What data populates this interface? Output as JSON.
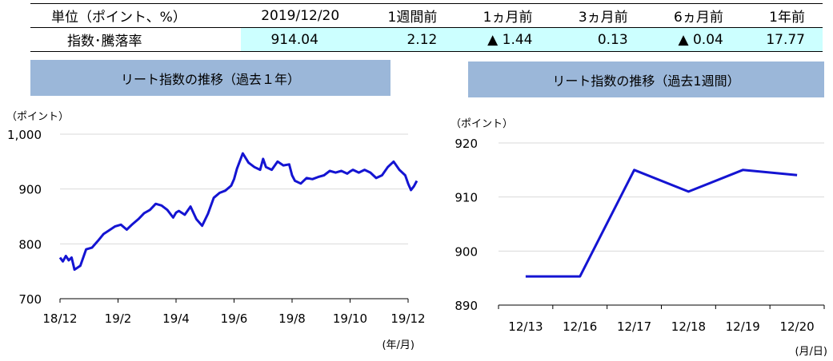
{
  "summary": {
    "headers": [
      "単位（ポイント、%）",
      "2019/12/20",
      "1週間前",
      "1ヵ月前",
      "3ヵ月前",
      "6ヵ月前",
      "1年前"
    ],
    "row_label": "指数･騰落率",
    "values": [
      "914.04",
      "2.12",
      "▲ 1.44",
      "0.13",
      "▲ 0.04",
      "17.77"
    ]
  },
  "colors": {
    "line": "#1414d2",
    "banner": "#9bb7d9",
    "highlight": "#ccffff",
    "grid": "#d9d9d9"
  },
  "chart_data": [
    {
      "type": "line",
      "title": "リート指数の推移（過去１年）",
      "y_unit": "（ポイント）",
      "x_unit": "(年/月)",
      "ylim": [
        700,
        1000
      ],
      "yticks": [
        "700",
        "800",
        "900",
        "1,000"
      ],
      "xticks": [
        "18/12",
        "19/2",
        "19/4",
        "19/6",
        "19/8",
        "19/10",
        "19/12"
      ],
      "grid": true,
      "x": [
        0,
        0.05,
        0.1,
        0.15,
        0.2,
        0.25,
        0.35,
        0.45,
        0.55,
        0.65,
        0.75,
        0.85,
        0.95,
        1.05,
        1.15,
        1.25,
        1.35,
        1.45,
        1.55,
        1.65,
        1.75,
        1.85,
        1.95,
        2.0,
        2.05,
        2.15,
        2.25,
        2.35,
        2.45,
        2.55,
        2.65,
        2.75,
        2.85,
        2.95,
        3.0,
        3.05,
        3.15,
        3.25,
        3.35,
        3.45,
        3.5,
        3.55,
        3.65,
        3.75,
        3.85,
        3.95,
        4.0,
        4.05,
        4.15,
        4.25,
        4.35,
        4.45,
        4.55,
        4.65,
        4.75,
        4.85,
        4.95,
        5.0,
        5.05,
        5.15,
        5.25,
        5.35,
        5.45,
        5.55,
        5.65,
        5.75,
        5.85,
        5.95,
        6.0,
        6.05,
        6.1,
        6.15
      ],
      "series": [
        {
          "values": [
            775,
            768,
            778,
            770,
            775,
            753,
            760,
            790,
            793,
            805,
            818,
            825,
            832,
            835,
            826,
            836,
            845,
            856,
            862,
            873,
            870,
            862,
            848,
            857,
            860,
            853,
            868,
            845,
            833,
            855,
            884,
            893,
            897,
            906,
            918,
            937,
            965,
            948,
            940,
            935,
            955,
            940,
            935,
            950,
            943,
            945,
            925,
            915,
            910,
            920,
            918,
            922,
            925,
            933,
            930,
            933,
            928,
            932,
            935,
            930,
            935,
            930,
            920,
            925,
            940,
            950,
            935,
            925,
            910,
            898,
            905,
            915
          ]
        }
      ]
    },
    {
      "type": "line",
      "title": "リート指数の推移（過去1週間）",
      "y_unit": "（ポイント）",
      "x_unit": "(月/日)",
      "ylim": [
        890,
        920
      ],
      "yticks": [
        "890",
        "900",
        "910",
        "920"
      ],
      "categories": [
        "12/13",
        "12/16",
        "12/17",
        "12/18",
        "12/19",
        "12/20"
      ],
      "grid": true,
      "series": [
        {
          "values": [
            895.3,
            895.3,
            915.0,
            911.0,
            915.0,
            914.04
          ]
        }
      ]
    }
  ]
}
